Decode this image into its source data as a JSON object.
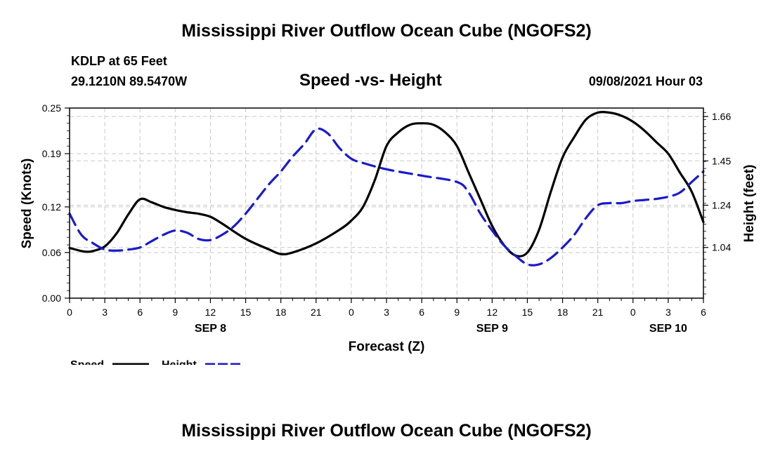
{
  "header": {
    "title_top": "Mississippi River Outflow Ocean Cube (NGOFS2)",
    "station": "KDLP at 65 Feet",
    "coords": "29.1210N  89.5470W",
    "subtitle": "Speed -vs- Height",
    "datetime": "09/08/2021 Hour 03",
    "title_bottom": "Mississippi River Outflow Ocean Cube (NGOFS2)"
  },
  "legend": {
    "speed_label": "Speed",
    "height_label": "Height"
  },
  "colors": {
    "speed": "#000000",
    "height": "#1a1acc",
    "grid": "#c8c8c8"
  },
  "chart_data": {
    "type": "line",
    "xlabel": "Forecast (Z)",
    "ylabel_left": "Speed (Knots)",
    "ylabel_right": "Height (feet)",
    "x_range": [
      0,
      54
    ],
    "x_ticks": [
      0,
      3,
      6,
      9,
      12,
      15,
      18,
      21,
      24,
      27,
      30,
      33,
      36,
      39,
      42,
      45,
      48,
      51,
      54
    ],
    "x_tick_labels": [
      "0",
      "3",
      "6",
      "9",
      "12",
      "15",
      "18",
      "21",
      "0",
      "3",
      "6",
      "9",
      "12",
      "15",
      "18",
      "21",
      "0",
      "3",
      "6"
    ],
    "day_labels": [
      {
        "x": 12,
        "label": "SEP 8"
      },
      {
        "x": 36,
        "label": "SEP 9"
      },
      {
        "x": 51,
        "label": "SEP 10"
      }
    ],
    "ylim_left": [
      0,
      0.25
    ],
    "y_ticks_left": [
      0,
      0.06,
      0.12,
      0.19,
      0.25
    ],
    "y_tick_labels_left": [
      "0.00",
      "0.06",
      "0.12",
      "0.19",
      "0.25"
    ],
    "ylim_right": [
      0.8,
      1.7
    ],
    "y_ticks_right": [
      1.04,
      1.24,
      1.45,
      1.66
    ],
    "y_tick_labels_right": [
      "1.04",
      "1.24",
      "1.45",
      "1.66"
    ],
    "series": [
      {
        "name": "Speed",
        "axis": "left",
        "style": "solid",
        "x": [
          0,
          1,
          1.5,
          2,
          3,
          4,
          5,
          6,
          7,
          8,
          9,
          10,
          11,
          12,
          13,
          15,
          17,
          18,
          19,
          21,
          23,
          24,
          25,
          26,
          27,
          28,
          29,
          30,
          31,
          32,
          33,
          34,
          35,
          36,
          37,
          38,
          39,
          40,
          41,
          42,
          43,
          44,
          45,
          46,
          47,
          48,
          49,
          50,
          51,
          52,
          53,
          54
        ],
        "values": [
          0.066,
          0.062,
          0.061,
          0.062,
          0.068,
          0.085,
          0.11,
          0.13,
          0.126,
          0.12,
          0.116,
          0.113,
          0.111,
          0.107,
          0.098,
          0.078,
          0.064,
          0.058,
          0.06,
          0.072,
          0.09,
          0.102,
          0.12,
          0.155,
          0.2,
          0.218,
          0.228,
          0.23,
          0.228,
          0.218,
          0.2,
          0.165,
          0.13,
          0.095,
          0.07,
          0.056,
          0.06,
          0.09,
          0.14,
          0.185,
          0.212,
          0.235,
          0.244,
          0.244,
          0.24,
          0.232,
          0.22,
          0.205,
          0.19,
          0.165,
          0.14,
          0.1
        ]
      },
      {
        "name": "Height",
        "axis": "right",
        "style": "dashed",
        "x": [
          0,
          1,
          2,
          3,
          4,
          5,
          6,
          7,
          8,
          9,
          10,
          11,
          12,
          13,
          14,
          15,
          16,
          17,
          18,
          19,
          20,
          21,
          22,
          23,
          24,
          25,
          27,
          30,
          33,
          34,
          35,
          36,
          37,
          38,
          39,
          40,
          41,
          42,
          43,
          44,
          45,
          46,
          47,
          48,
          49,
          50,
          51,
          52,
          53,
          54
        ],
        "values": [
          1.2,
          1.1,
          1.06,
          1.03,
          1.025,
          1.03,
          1.04,
          1.07,
          1.1,
          1.12,
          1.11,
          1.08,
          1.075,
          1.1,
          1.14,
          1.2,
          1.27,
          1.34,
          1.4,
          1.47,
          1.53,
          1.6,
          1.58,
          1.51,
          1.46,
          1.44,
          1.41,
          1.38,
          1.35,
          1.3,
          1.2,
          1.12,
          1.05,
          1.0,
          0.96,
          0.96,
          0.99,
          1.04,
          1.1,
          1.18,
          1.24,
          1.25,
          1.25,
          1.26,
          1.265,
          1.27,
          1.28,
          1.3,
          1.35,
          1.4
        ]
      }
    ]
  }
}
